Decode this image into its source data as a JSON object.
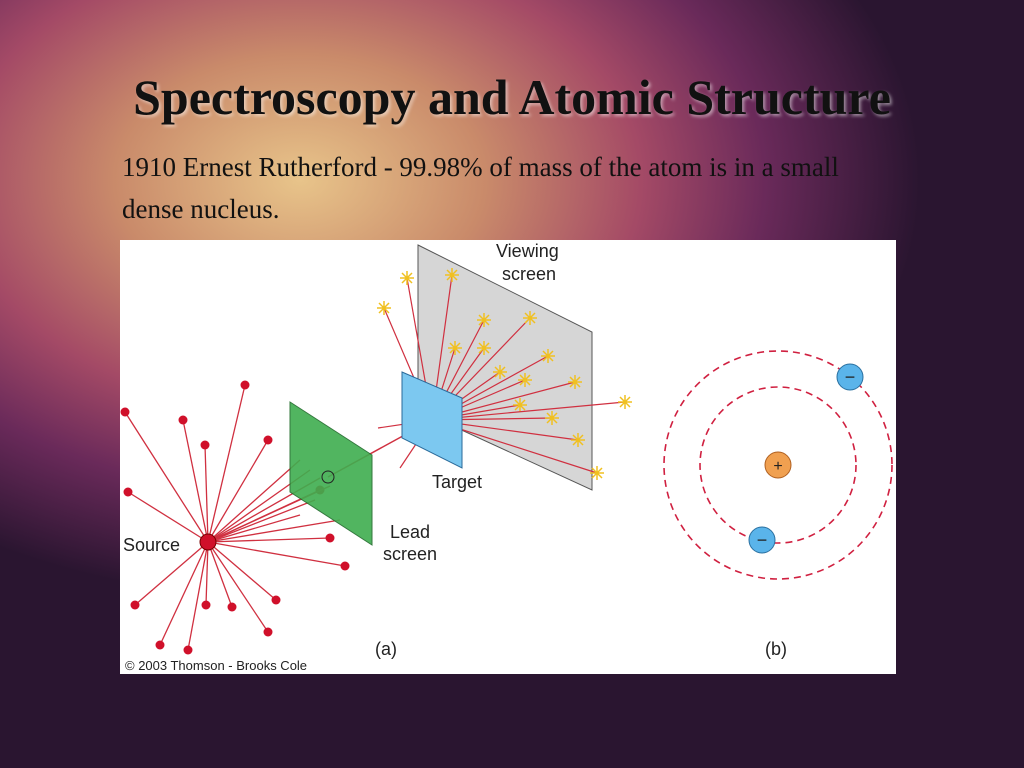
{
  "slide": {
    "title": "Spectroscopy and Atomic Structure",
    "body": "1910 Ernest Rutherford - 99.98% of mass of the atom is in a small dense nucleus."
  },
  "figure": {
    "viewing_screen": [
      "Viewing",
      "screen"
    ],
    "target": "Target",
    "lead_screen": [
      "Lead",
      "screen"
    ],
    "source": "Source",
    "panel_a": "(a)",
    "panel_b": "(b)",
    "copyright": "© 2003 Thomson - Brooks Cole",
    "nucleus_sign": "+",
    "electron_signs": [
      "−",
      "−"
    ]
  }
}
